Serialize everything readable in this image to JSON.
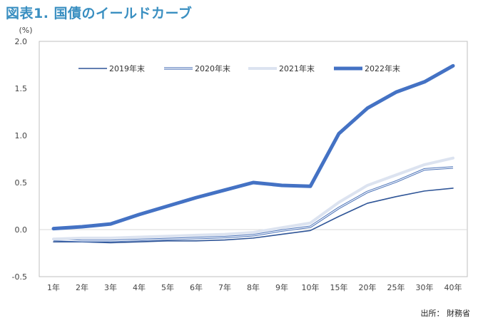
{
  "title": "図表1. 国債のイールドカーブ",
  "source": "出所： 財務省",
  "chart_data": {
    "type": "line",
    "title": "図表1. 国債のイールドカーブ",
    "ylabel": "(%)",
    "xlabel": "",
    "ylim": [
      -0.5,
      2.0
    ],
    "yticks": [
      "2.0",
      "1.5",
      "1.0",
      "0.5",
      "0.0",
      "-0.5"
    ],
    "ytick_values": [
      2.0,
      1.5,
      1.0,
      0.5,
      0.0,
      -0.5
    ],
    "categories": [
      "1年",
      "2年",
      "3年",
      "4年",
      "5年",
      "6年",
      "7年",
      "8年",
      "9年",
      "10年",
      "15年",
      "20年",
      "25年",
      "30年",
      "40年"
    ],
    "legend_position": "top",
    "grid": false,
    "series": [
      {
        "name": "2019年末",
        "color": "#2f5597",
        "style": "thin",
        "values": [
          -0.13,
          -0.13,
          -0.14,
          -0.13,
          -0.12,
          -0.12,
          -0.11,
          -0.09,
          -0.05,
          -0.01,
          0.14,
          0.28,
          0.35,
          0.41,
          0.44
        ]
      },
      {
        "name": "2020年末",
        "color": "#4a72b8",
        "style": "double",
        "values": [
          -0.11,
          -0.12,
          -0.12,
          -0.11,
          -0.1,
          -0.09,
          -0.08,
          -0.06,
          -0.01,
          0.03,
          0.23,
          0.4,
          0.51,
          0.64,
          0.66
        ]
      },
      {
        "name": "2021年末",
        "color": "#dce3f0",
        "style": "light",
        "values": [
          -0.1,
          -0.09,
          -0.09,
          -0.08,
          -0.07,
          -0.06,
          -0.05,
          -0.03,
          0.02,
          0.07,
          0.29,
          0.47,
          0.58,
          0.69,
          0.76
        ]
      },
      {
        "name": "2022年末",
        "color": "#4472c4",
        "style": "thick",
        "values": [
          0.01,
          0.03,
          0.06,
          0.16,
          0.25,
          0.34,
          0.42,
          0.5,
          0.47,
          0.46,
          1.02,
          1.29,
          1.46,
          1.57,
          1.74
        ]
      }
    ]
  }
}
